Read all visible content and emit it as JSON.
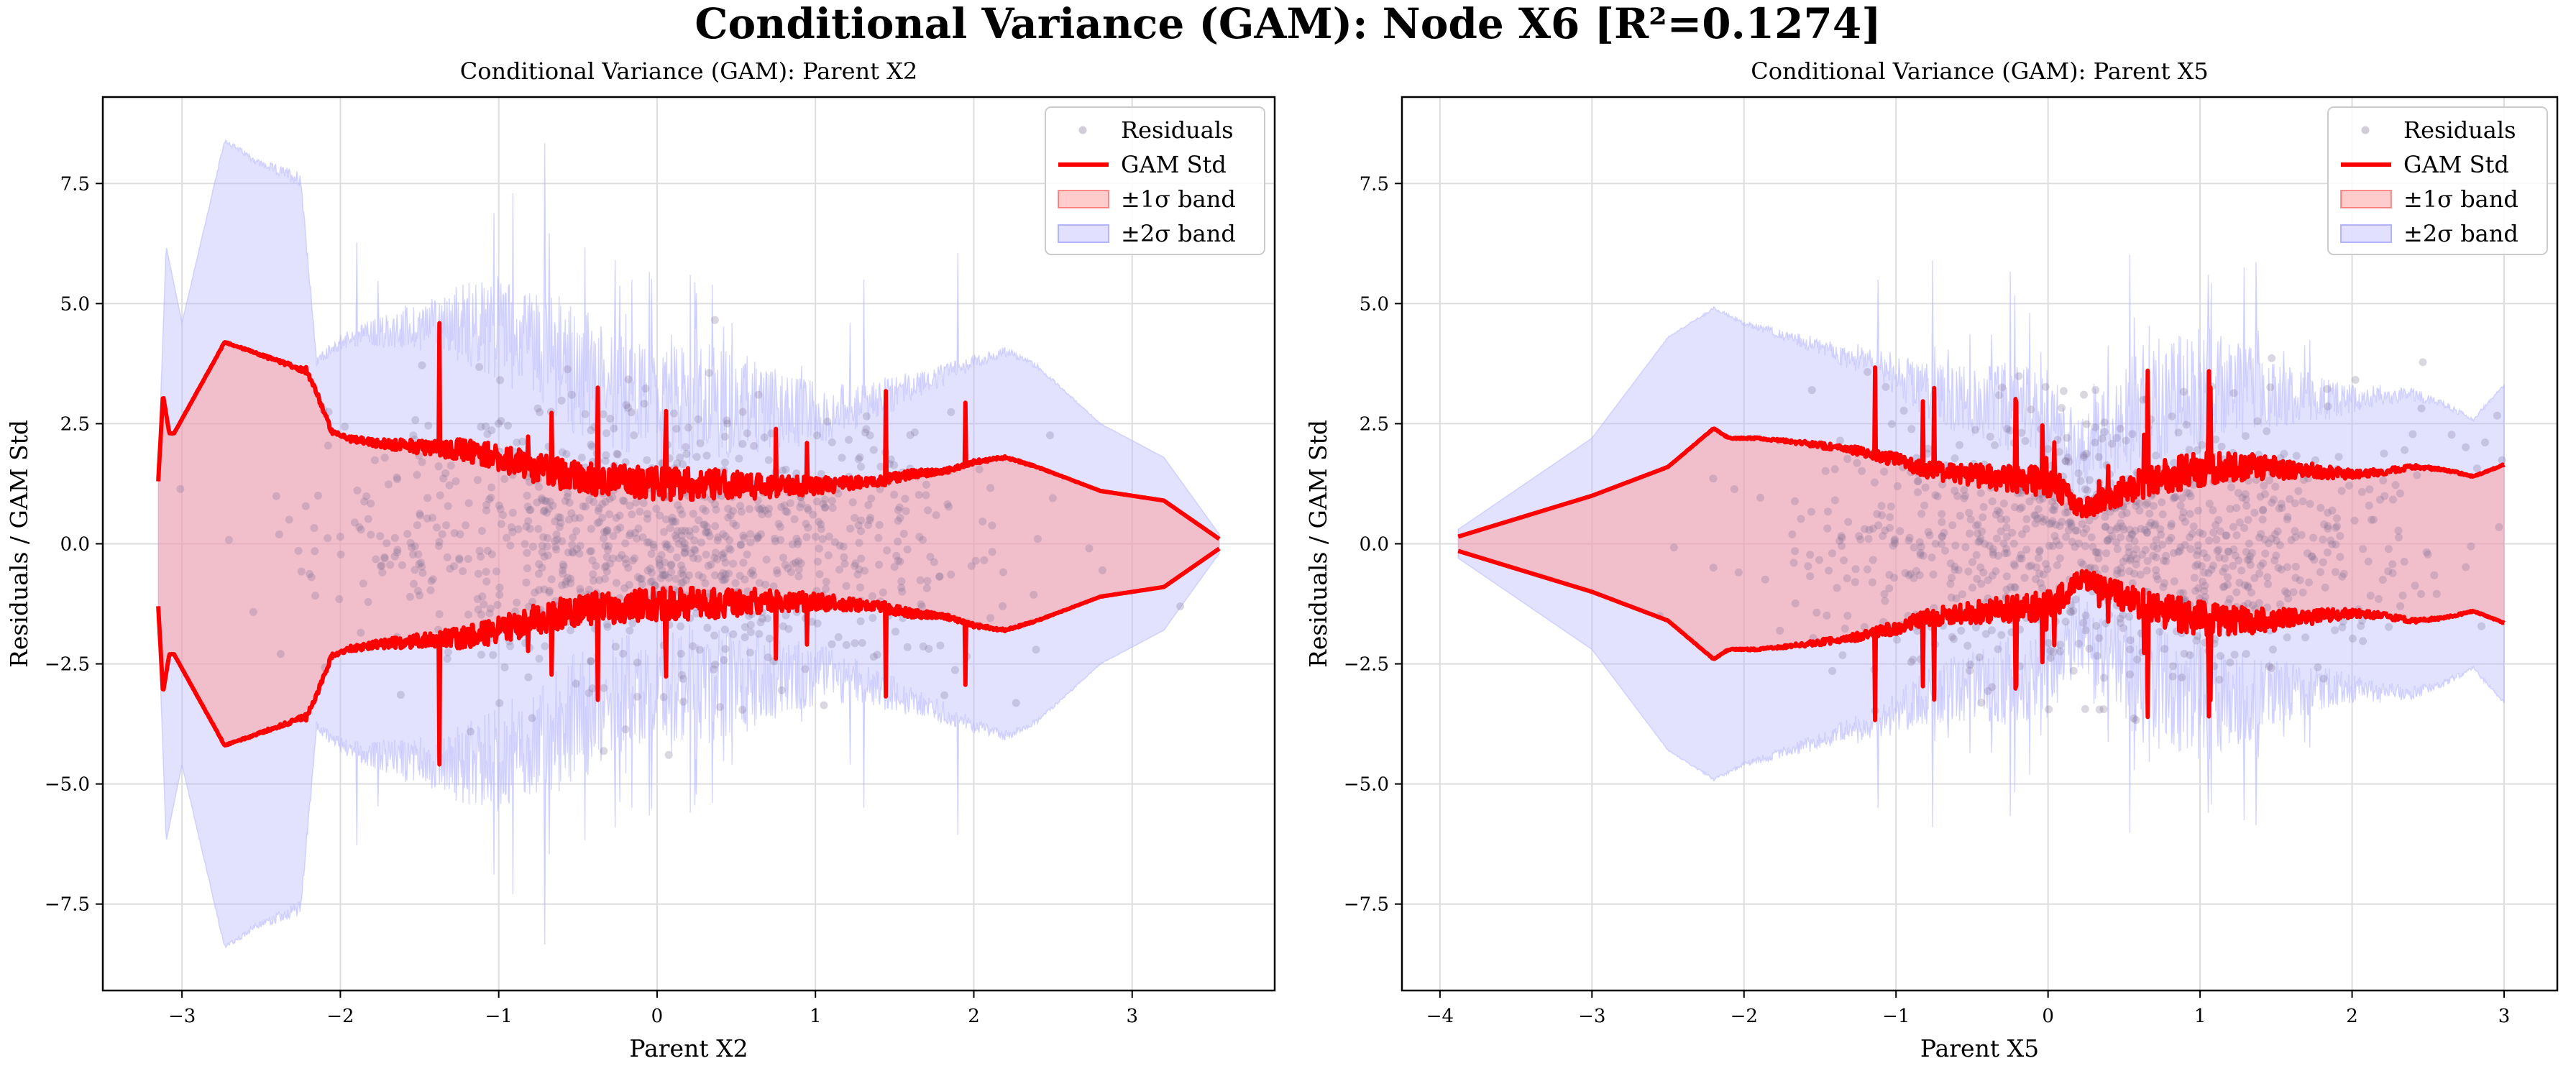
{
  "suptitle": "Conditional Variance (GAM): Node X6 [R²=0.1274]",
  "colors": {
    "residual_points": "#7f6f93",
    "gam_std": "#ff0000",
    "band1": "#ff9999",
    "band2": "#b3b3ff",
    "grid": "#dddddd"
  },
  "legend": {
    "placement": "top-right",
    "entries": [
      "Residuals",
      "GAM Std",
      "±1σ band",
      "±2σ band"
    ]
  },
  "chart_data": [
    {
      "type": "scatter",
      "title": "Conditional Variance (GAM): Parent X2",
      "xlabel": "Parent X2",
      "ylabel": "Residuals / GAM Std",
      "xlim": [
        -3.5,
        3.9
      ],
      "ylim": [
        -9.3,
        9.3
      ],
      "xticks": [
        -3,
        -2,
        -1,
        0,
        1,
        2,
        3
      ],
      "yticks": [
        -7.5,
        -5.0,
        -2.5,
        0.0,
        2.5,
        5.0,
        7.5
      ],
      "grid": true,
      "x_domain": [
        -3.15,
        3.55
      ],
      "series": [
        {
          "name": "GAM Std",
          "x": [
            -3.15,
            -3.12,
            -3.08,
            -3.05,
            -2.73,
            -2.22,
            -2.18,
            -2.05,
            -1.95,
            -1.8,
            -1.6,
            -1.4,
            -1.2,
            -1.0,
            -0.8,
            -0.6,
            -0.4,
            -0.2,
            0.0,
            0.2,
            0.4,
            0.6,
            0.8,
            1.0,
            1.2,
            1.4,
            1.6,
            1.8,
            2.0,
            2.2,
            2.4,
            2.6,
            2.8,
            3.2,
            3.55
          ],
          "y": [
            1.3,
            3.1,
            2.3,
            2.3,
            4.2,
            3.6,
            3.4,
            2.3,
            2.2,
            2.1,
            2.05,
            2.0,
            1.95,
            1.8,
            1.6,
            1.45,
            1.35,
            1.3,
            1.25,
            1.25,
            1.25,
            1.2,
            1.2,
            1.2,
            1.25,
            1.3,
            1.45,
            1.5,
            1.7,
            1.8,
            1.6,
            1.35,
            1.1,
            0.9,
            0.1
          ]
        },
        {
          "name": "±2σ band",
          "x": [
            -3.15,
            -3.1,
            -3.0,
            -2.73,
            -2.5,
            -2.25,
            -2.15,
            -2.0,
            -1.8,
            -1.6,
            -1.4,
            -1.2,
            -1.0,
            -0.8,
            -0.6,
            -0.4,
            -0.2,
            0.0,
            0.2,
            0.4,
            0.6,
            0.8,
            1.0,
            1.2,
            1.4,
            1.6,
            1.8,
            2.0,
            2.2,
            2.4,
            2.6,
            2.8,
            3.2,
            3.55
          ],
          "y": [
            1.6,
            6.2,
            4.6,
            8.4,
            7.9,
            7.6,
            3.8,
            4.2,
            4.4,
            4.5,
            4.6,
            4.6,
            4.5,
            4.2,
            3.8,
            3.4,
            3.0,
            2.8,
            2.9,
            3.0,
            2.9,
            2.7,
            2.7,
            2.8,
            3.0,
            3.3,
            3.5,
            3.8,
            4.0,
            3.7,
            3.1,
            2.5,
            1.8,
            0.2
          ]
        }
      ],
      "residuals": {
        "name": "Residuals",
        "approx_count": 1000,
        "approx_std": 1.3
      }
    },
    {
      "type": "scatter",
      "title": "Conditional Variance (GAM): Parent X5",
      "xlabel": "Parent X5",
      "ylabel": "Residuals / GAM Std",
      "xlim": [
        -4.25,
        3.35
      ],
      "ylim": [
        -9.3,
        9.3
      ],
      "xticks": [
        -4,
        -3,
        -2,
        -1,
        0,
        1,
        2,
        3
      ],
      "yticks": [
        -7.5,
        -5.0,
        -2.5,
        0.0,
        2.5,
        5.0,
        7.5
      ],
      "grid": true,
      "x_domain": [
        -3.88,
        3.0
      ],
      "series": [
        {
          "name": "GAM Std",
          "x": [
            -3.88,
            -3.0,
            -2.5,
            -2.2,
            -2.1,
            -1.9,
            -1.6,
            -1.4,
            -1.2,
            -1.0,
            -0.8,
            -0.6,
            -0.4,
            -0.2,
            0.0,
            0.1,
            0.2,
            0.3,
            0.4,
            0.6,
            0.8,
            1.0,
            1.2,
            1.4,
            1.6,
            1.8,
            2.0,
            2.2,
            2.4,
            2.6,
            2.8,
            3.0
          ],
          "y": [
            0.15,
            1.0,
            1.6,
            2.4,
            2.2,
            2.2,
            2.1,
            2.0,
            1.9,
            1.75,
            1.55,
            1.45,
            1.4,
            1.35,
            1.3,
            1.1,
            0.75,
            0.8,
            1.0,
            1.25,
            1.45,
            1.55,
            1.6,
            1.6,
            1.55,
            1.5,
            1.45,
            1.5,
            1.6,
            1.55,
            1.4,
            1.65
          ]
        },
        {
          "name": "±2σ band",
          "x": [
            -3.88,
            -3.0,
            -2.5,
            -2.2,
            -2.0,
            -1.8,
            -1.6,
            -1.4,
            -1.2,
            -1.0,
            -0.8,
            -0.6,
            -0.4,
            -0.2,
            0.0,
            0.2,
            0.4,
            0.6,
            0.8,
            1.0,
            1.2,
            1.4,
            1.6,
            1.8,
            2.0,
            2.2,
            2.4,
            2.6,
            2.8,
            3.0
          ],
          "y": [
            0.3,
            2.2,
            4.3,
            4.9,
            4.6,
            4.4,
            4.2,
            4.0,
            3.8,
            3.5,
            3.2,
            3.0,
            2.9,
            2.8,
            2.6,
            1.8,
            2.4,
            2.8,
            3.1,
            3.3,
            3.3,
            3.2,
            3.1,
            3.0,
            3.0,
            3.1,
            3.1,
            2.9,
            2.6,
            3.3
          ]
        }
      ],
      "residuals": {
        "name": "Residuals",
        "approx_count": 1000,
        "approx_std": 1.3
      }
    }
  ]
}
